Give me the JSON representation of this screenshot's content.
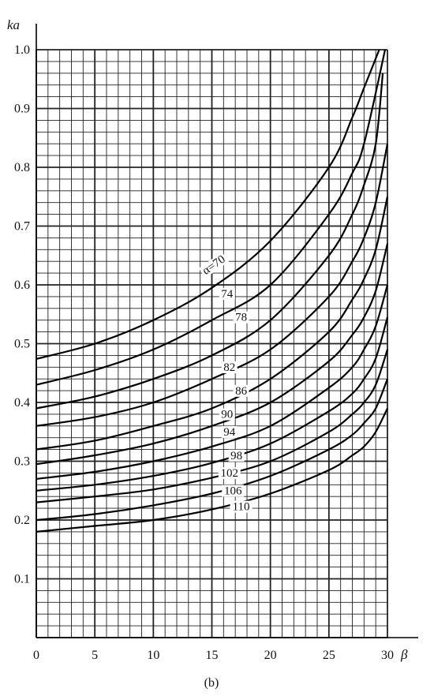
{
  "chart_data": {
    "type": "line",
    "xlabel": "β",
    "ylabel": "ka",
    "xlim": [
      0,
      30
    ],
    "ylim": [
      0,
      1.0
    ],
    "x_ticks": [
      "0",
      "5",
      "10",
      "15",
      "20",
      "25",
      "30"
    ],
    "y_ticks": [
      "0.1",
      "0.2",
      "0.3",
      "0.4",
      "0.5",
      "0.6",
      "0.7",
      "0.8",
      "0.9",
      "1.0"
    ],
    "grid": true,
    "caption": "(b)",
    "series": [
      {
        "name": "α=70",
        "x": [
          0,
          5,
          10,
          15,
          20,
          25,
          27,
          28,
          29.3
        ],
        "y": [
          0.474,
          0.5,
          0.54,
          0.595,
          0.675,
          0.8,
          0.885,
          0.935,
          1.0
        ]
      },
      {
        "name": "74",
        "x": [
          0,
          5,
          10,
          15,
          20,
          25,
          27,
          28,
          29.8
        ],
        "y": [
          0.43,
          0.455,
          0.49,
          0.54,
          0.6,
          0.72,
          0.79,
          0.84,
          1.0
        ]
      },
      {
        "name": "78",
        "x": [
          0,
          5,
          10,
          15,
          20,
          25,
          27,
          28,
          29,
          29.6
        ],
        "y": [
          0.39,
          0.41,
          0.44,
          0.48,
          0.54,
          0.65,
          0.72,
          0.77,
          0.84,
          0.96
        ]
      },
      {
        "name": "82",
        "x": [
          0,
          5,
          10,
          15,
          20,
          25,
          27,
          28,
          29,
          30
        ],
        "y": [
          0.36,
          0.375,
          0.4,
          0.44,
          0.49,
          0.58,
          0.64,
          0.68,
          0.74,
          0.84
        ]
      },
      {
        "name": "86",
        "x": [
          0,
          5,
          10,
          15,
          20,
          25,
          27,
          28,
          29,
          30
        ],
        "y": [
          0.32,
          0.335,
          0.36,
          0.39,
          0.44,
          0.52,
          0.575,
          0.61,
          0.66,
          0.75
        ]
      },
      {
        "name": "90",
        "x": [
          0,
          5,
          10,
          15,
          20,
          25,
          27,
          28,
          29,
          30
        ],
        "y": [
          0.295,
          0.31,
          0.33,
          0.36,
          0.4,
          0.47,
          0.515,
          0.545,
          0.59,
          0.67
        ]
      },
      {
        "name": "94",
        "x": [
          0,
          5,
          10,
          15,
          20,
          25,
          27,
          28,
          29,
          30
        ],
        "y": [
          0.27,
          0.282,
          0.3,
          0.325,
          0.36,
          0.425,
          0.46,
          0.49,
          0.53,
          0.6
        ]
      },
      {
        "name": "98",
        "x": [
          0,
          5,
          10,
          15,
          20,
          25,
          27,
          28,
          29,
          30
        ],
        "y": [
          0.25,
          0.26,
          0.275,
          0.297,
          0.33,
          0.385,
          0.415,
          0.44,
          0.475,
          0.545
        ]
      },
      {
        "name": "102",
        "x": [
          0,
          5,
          10,
          15,
          20,
          25,
          27,
          28,
          29,
          30
        ],
        "y": [
          0.23,
          0.24,
          0.252,
          0.272,
          0.3,
          0.35,
          0.38,
          0.4,
          0.43,
          0.49
        ]
      },
      {
        "name": "106",
        "x": [
          0,
          5,
          10,
          15,
          20,
          25,
          27,
          28,
          29,
          30
        ],
        "y": [
          0.2,
          0.21,
          0.225,
          0.245,
          0.275,
          0.32,
          0.345,
          0.365,
          0.39,
          0.44
        ]
      },
      {
        "name": "110",
        "x": [
          0,
          5,
          10,
          15,
          20,
          25,
          27,
          28,
          29,
          30
        ],
        "y": [
          0.18,
          0.19,
          0.2,
          0.218,
          0.245,
          0.285,
          0.31,
          0.325,
          0.35,
          0.39
        ]
      }
    ],
    "label_positions": [
      {
        "name": "α=70",
        "x": 15.3,
        "y": 0.63,
        "rotate": -35
      },
      {
        "name": "74",
        "x": 16.3,
        "y": 0.58
      },
      {
        "name": "78",
        "x": 17.5,
        "y": 0.54
      },
      {
        "name": "82",
        "x": 16.5,
        "y": 0.455
      },
      {
        "name": "86",
        "x": 17.5,
        "y": 0.415
      },
      {
        "name": "90",
        "x": 16.3,
        "y": 0.375
      },
      {
        "name": "94",
        "x": 16.5,
        "y": 0.345
      },
      {
        "name": "98",
        "x": 17.1,
        "y": 0.305
      },
      {
        "name": "102",
        "x": 16.5,
        "y": 0.275
      },
      {
        "name": "106",
        "x": 16.8,
        "y": 0.245
      },
      {
        "name": "110",
        "x": 17.5,
        "y": 0.218
      }
    ]
  }
}
